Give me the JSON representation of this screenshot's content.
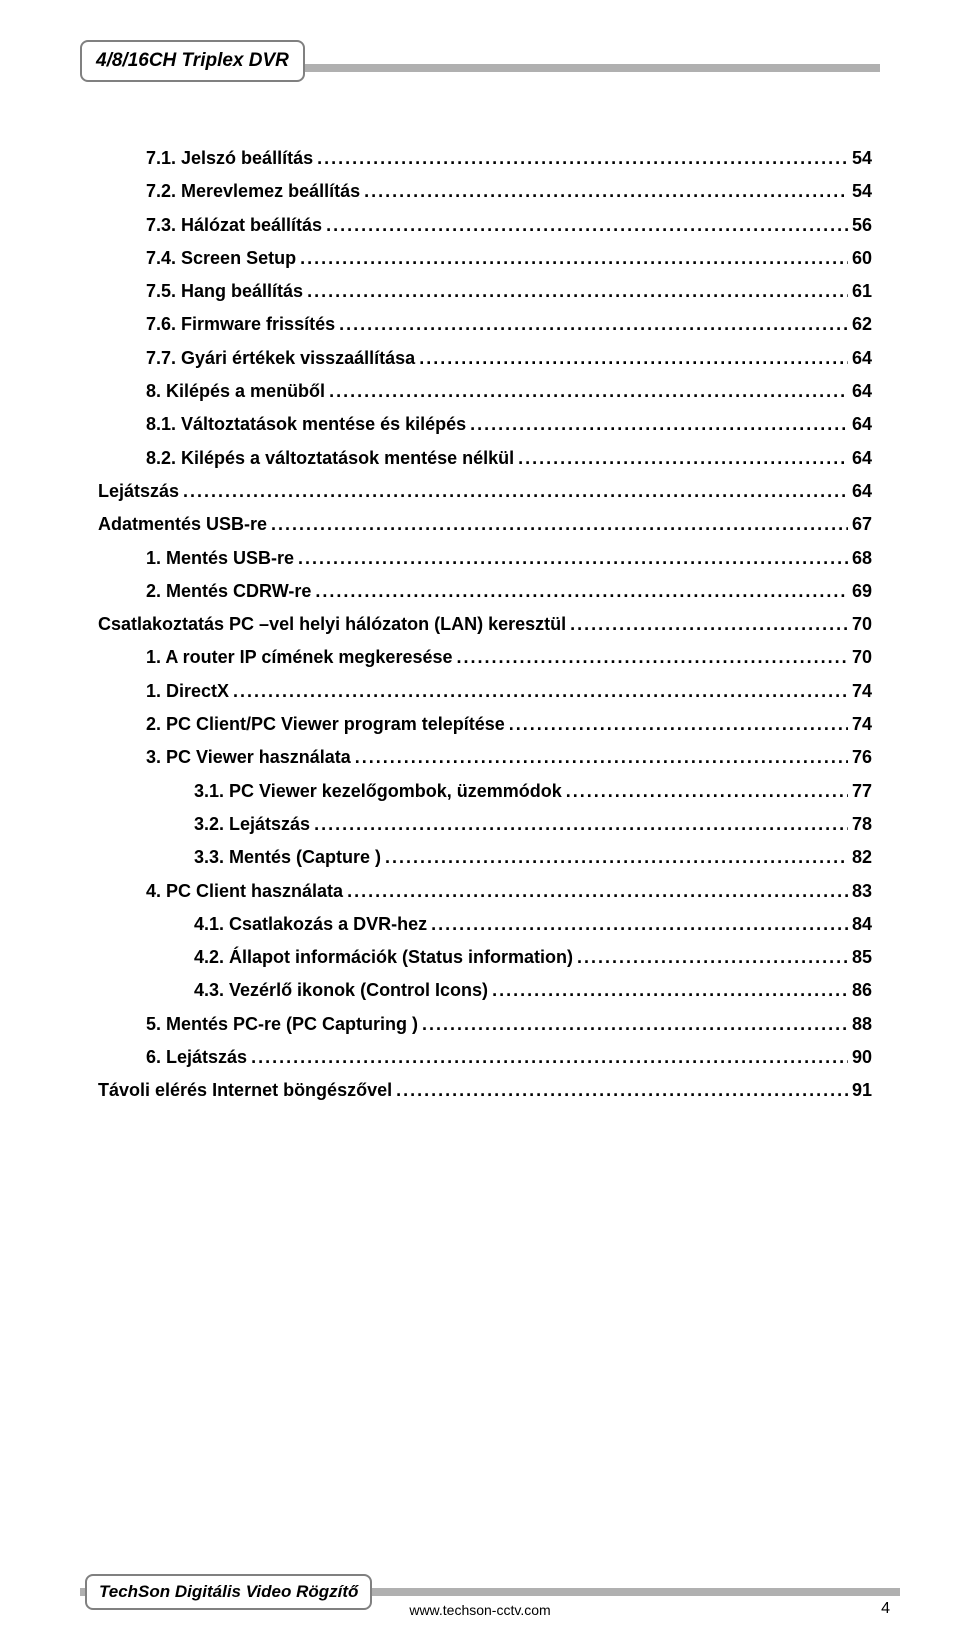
{
  "header": {
    "title": "4/8/16CH Triplex DVR"
  },
  "toc": [
    {
      "indent": 1,
      "label": "7.1.  Jelszó beállítás",
      "page": "54"
    },
    {
      "indent": 1,
      "label": "7.2.  Merevlemez beállítás",
      "page": "54"
    },
    {
      "indent": 1,
      "label": "7.3.  Hálózat beállítás",
      "page": "56"
    },
    {
      "indent": 1,
      "label": "7.4.  Screen Setup",
      "page": "60"
    },
    {
      "indent": 1,
      "label": "7.5.  Hang beállítás",
      "page": "61"
    },
    {
      "indent": 1,
      "label": "7.6.  Firmware frissítés",
      "page": "62"
    },
    {
      "indent": 1,
      "label": "7.7.  Gyári értékek visszaállítása",
      "page": "64"
    },
    {
      "indent": 1,
      "label": "8.    Kilépés a menüből",
      "page": "64"
    },
    {
      "indent": 1,
      "label": "8.1.  Változtatások mentése és kilépés",
      "page": "64"
    },
    {
      "indent": 1,
      "label": "8.2.  Kilépés a változtatások mentése nélkül",
      "page": "64"
    },
    {
      "indent": 0,
      "label": "Lejátszás",
      "page": " 64"
    },
    {
      "indent": 0,
      "label": "Adatmentés USB-re",
      "page": " 67"
    },
    {
      "indent": 1,
      "label": "1.    Mentés USB-re",
      "page": "68"
    },
    {
      "indent": 1,
      "label": "2.    Mentés CDRW-re",
      "page": "69"
    },
    {
      "indent": 0,
      "label": "Csatlakoztatás PC –vel helyi hálózaton (LAN) keresztül",
      "page": " 70"
    },
    {
      "indent": 1,
      "label": "1.    A router IP címének megkeresése",
      "page": "70"
    },
    {
      "indent": 1,
      "label": "1.    DirectX",
      "page": "74"
    },
    {
      "indent": 1,
      "label": "2.    PC Client/PC Viewer program telepítése",
      "page": "74"
    },
    {
      "indent": 1,
      "label": "3.    PC Viewer használata",
      "page": "76"
    },
    {
      "indent": 2,
      "label": "3.1.  PC Viewer kezelőgombok, üzemmódok",
      "page": "77"
    },
    {
      "indent": 2,
      "label": "3.2.  Lejátszás",
      "page": "78"
    },
    {
      "indent": 2,
      "label": "3.3.  Mentés (Capture )",
      "page": "82"
    },
    {
      "indent": 1,
      "label": "4.    PC Client használata",
      "page": "83"
    },
    {
      "indent": 2,
      "label": "4.1.  Csatlakozás a DVR-hez",
      "page": "84"
    },
    {
      "indent": 2,
      "label": "4.2.  Állapot információk (Status information)",
      "page": "85"
    },
    {
      "indent": 2,
      "label": "4.3.  Vezérlő ikonok (Control Icons)",
      "page": "86"
    },
    {
      "indent": 1,
      "label": "5.    Mentés PC-re (PC Capturing )",
      "page": "88"
    },
    {
      "indent": 1,
      "label": "6.    Lejátszás",
      "page": "90"
    },
    {
      "indent": 0,
      "label": "Távoli elérés Internet böngészővel",
      "page": " 91"
    }
  ],
  "footer": {
    "badge": "TechSon Digitális Video Rögzítő",
    "url": "www.techson-cctv.com",
    "pagenum": "4"
  },
  "style": {
    "dot_fill": "...................................................................................................................................................."
  }
}
